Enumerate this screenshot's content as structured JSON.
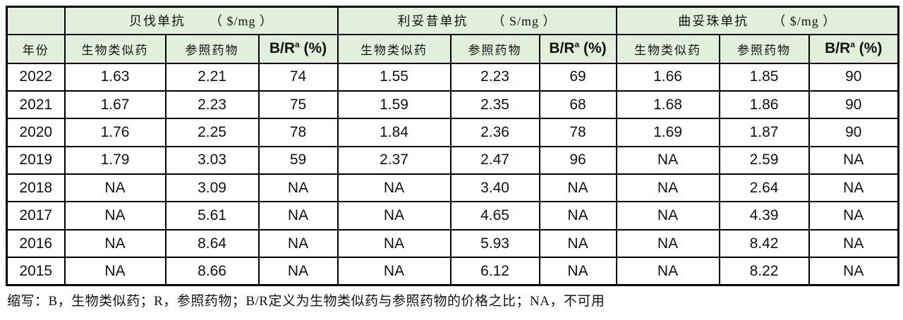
{
  "table": {
    "year_header": "年份",
    "groups": [
      {
        "name": "贝伐单抗",
        "unit": "（ $/mg ）"
      },
      {
        "name": "利妥昔单抗",
        "unit": "（ S/mg ）"
      },
      {
        "name": "曲妥珠单抗",
        "unit": "（ $/mg ）"
      }
    ],
    "sub_headers": [
      "生物类似药",
      "参照药物"
    ],
    "br_header": {
      "prefix": "B/R",
      "sup": "a",
      "suffix": " (%)"
    },
    "rows": [
      {
        "year": "2022",
        "cells": [
          "1.63",
          "2.21",
          "74",
          "1.55",
          "2.23",
          "69",
          "1.66",
          "1.85",
          "90"
        ]
      },
      {
        "year": "2021",
        "cells": [
          "1.67",
          "2.23",
          "75",
          "1.59",
          "2.35",
          "68",
          "1.68",
          "1.86",
          "90"
        ]
      },
      {
        "year": "2020",
        "cells": [
          "1.76",
          "2.25",
          "78",
          "1.84",
          "2.36",
          "78",
          "1.69",
          "1.87",
          "90"
        ]
      },
      {
        "year": "2019",
        "cells": [
          "1.79",
          "3.03",
          "59",
          "2.37",
          "2.47",
          "96",
          "NA",
          "2.59",
          "NA"
        ]
      },
      {
        "year": "2018",
        "cells": [
          "NA",
          "3.09",
          "NA",
          "NA",
          "3.40",
          "NA",
          "NA",
          "2.64",
          "NA"
        ]
      },
      {
        "year": "2017",
        "cells": [
          "NA",
          "5.61",
          "NA",
          "NA",
          "4.65",
          "NA",
          "NA",
          "4.39",
          "NA"
        ]
      },
      {
        "year": "2016",
        "cells": [
          "NA",
          "8.64",
          "NA",
          "NA",
          "5.93",
          "NA",
          "NA",
          "8.42",
          "NA"
        ]
      },
      {
        "year": "2015",
        "cells": [
          "NA",
          "8.66",
          "NA",
          "NA",
          "6.12",
          "NA",
          "NA",
          "8.22",
          "NA"
        ]
      }
    ],
    "footnote": "缩写：B，生物类似药；R，参照药物；B/R定义为生物类似药与参照药物的价格之比；NA，不可用",
    "colors": {
      "header_bg": "#e2efda",
      "border": "#000000",
      "body_bg": "#ffffff"
    }
  }
}
